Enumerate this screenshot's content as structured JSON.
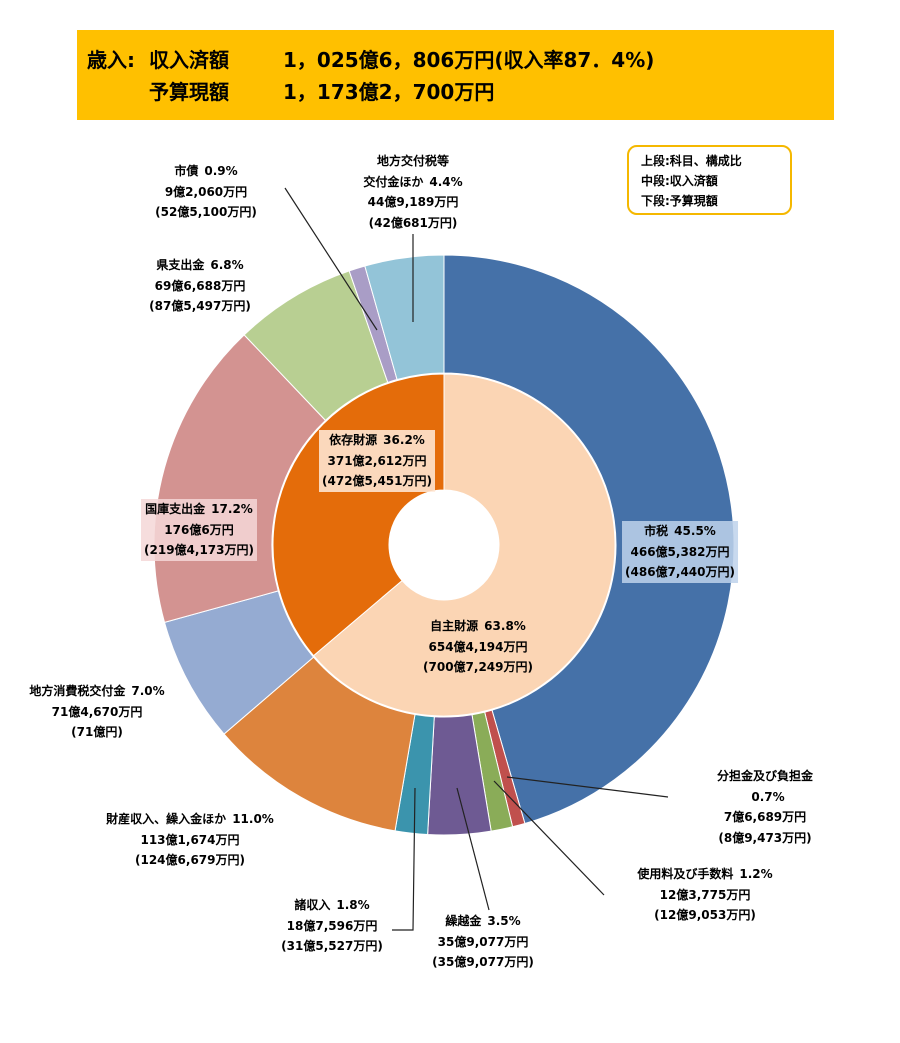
{
  "header": {
    "prefix": "歳入:",
    "rows": [
      {
        "label": "収入済額",
        "value": "1，025億6，806万円(収入率87．4%)"
      },
      {
        "label": "予算現額",
        "value": "1，173億2，700万円"
      }
    ]
  },
  "chart_data": {
    "type": "donut",
    "note": [
      "上段:科目、構成比",
      "中段:収入済額",
      "下段:予算現額"
    ],
    "outer": {
      "categories": [
        "市税",
        "分担金及び負担金",
        "使用料及び手数料",
        "繰越金",
        "諸収入",
        "財産収入、繰入金ほか",
        "地方消費税交付金",
        "国庫支出金",
        "県支出金",
        "市債",
        "地方交付税等\n交付金ほか"
      ],
      "values": [
        45.5,
        0.7,
        1.2,
        3.5,
        1.8,
        11.0,
        7.0,
        17.2,
        6.8,
        0.9,
        4.4
      ],
      "value_labels": [
        "45.5%",
        "0.7%",
        "1.2%",
        "3.5%",
        "1.8%",
        "11.0%",
        "7.0%",
        "17.2%",
        "6.8%",
        "0.9%",
        "4.4%"
      ],
      "amounts": [
        "466億5,382万円",
        "7億6,689万円",
        "12億3,775万円",
        "35億9,077万円",
        "18億7,596万円",
        "113億1,674万円",
        "71億4,670万円",
        "176億6万円",
        "69億6,688万円",
        "9億2,060万円",
        "44億9,189万円"
      ],
      "budgets": [
        "(486億7,440万円)",
        "(8億9,473万円)",
        "(12億9,053万円)",
        "(35億9,077万円)",
        "(31億5,527万円)",
        "(124億6,679万円)",
        "(71億円)",
        "(219億4,173万円)",
        "(87億5,497万円)",
        "(52億5,100万円)",
        "(42億681万円)"
      ],
      "colors": [
        "#4571a8",
        "#c0504d",
        "#8aac58",
        "#6e5a93",
        "#3b94ad",
        "#dd843d",
        "#95abd2",
        "#d39391",
        "#b8cf92",
        "#a99dc6",
        "#93c4d8"
      ]
    },
    "inner": {
      "categories": [
        "自主財源",
        "依存財源"
      ],
      "values": [
        63.8,
        36.2
      ],
      "value_labels": [
        "63.8%",
        "36.2%"
      ],
      "amounts": [
        "654億4,194万円",
        "371億2,612万円"
      ],
      "budgets": [
        "(700億7,249万円)",
        "(472億5,451万円)"
      ],
      "colors": [
        "#fbd5b4",
        "#e46c0a"
      ]
    }
  }
}
